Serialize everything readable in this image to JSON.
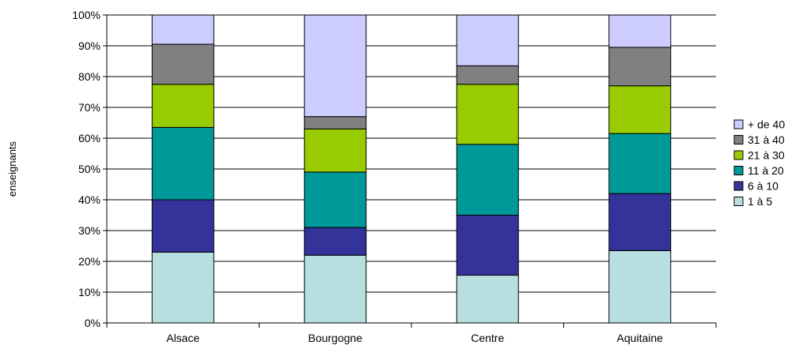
{
  "chart_data": {
    "type": "bar",
    "stacked": true,
    "percent": true,
    "title": "",
    "xlabel": "",
    "ylabel": "enseignants",
    "ylim": [
      0,
      100
    ],
    "yticks": [
      "0%",
      "10%",
      "20%",
      "30%",
      "40%",
      "50%",
      "60%",
      "70%",
      "80%",
      "90%",
      "100%"
    ],
    "grid": true,
    "legend_position": "right",
    "categories": [
      "Alsace",
      "Bourgogne",
      "Centre",
      "Aquitaine"
    ],
    "series": [
      {
        "name": "1 à 5",
        "color": "#b7dfe0",
        "values": [
          23,
          22,
          15.5,
          23.5
        ]
      },
      {
        "name": "6 à 10",
        "color": "#333399",
        "values": [
          17,
          9,
          19.5,
          18.5
        ]
      },
      {
        "name": "11 à 20",
        "color": "#009999",
        "values": [
          23.5,
          18,
          23,
          19.5
        ]
      },
      {
        "name": "21 à 30",
        "color": "#99cc00",
        "values": [
          14,
          14,
          19.5,
          15.5
        ]
      },
      {
        "name": "31 à 40",
        "color": "#808080",
        "values": [
          13,
          4,
          6,
          12.5
        ]
      },
      {
        "name": "+ de 40",
        "color": "#ccccff",
        "values": [
          9.5,
          33,
          16.5,
          10.5
        ]
      }
    ]
  }
}
